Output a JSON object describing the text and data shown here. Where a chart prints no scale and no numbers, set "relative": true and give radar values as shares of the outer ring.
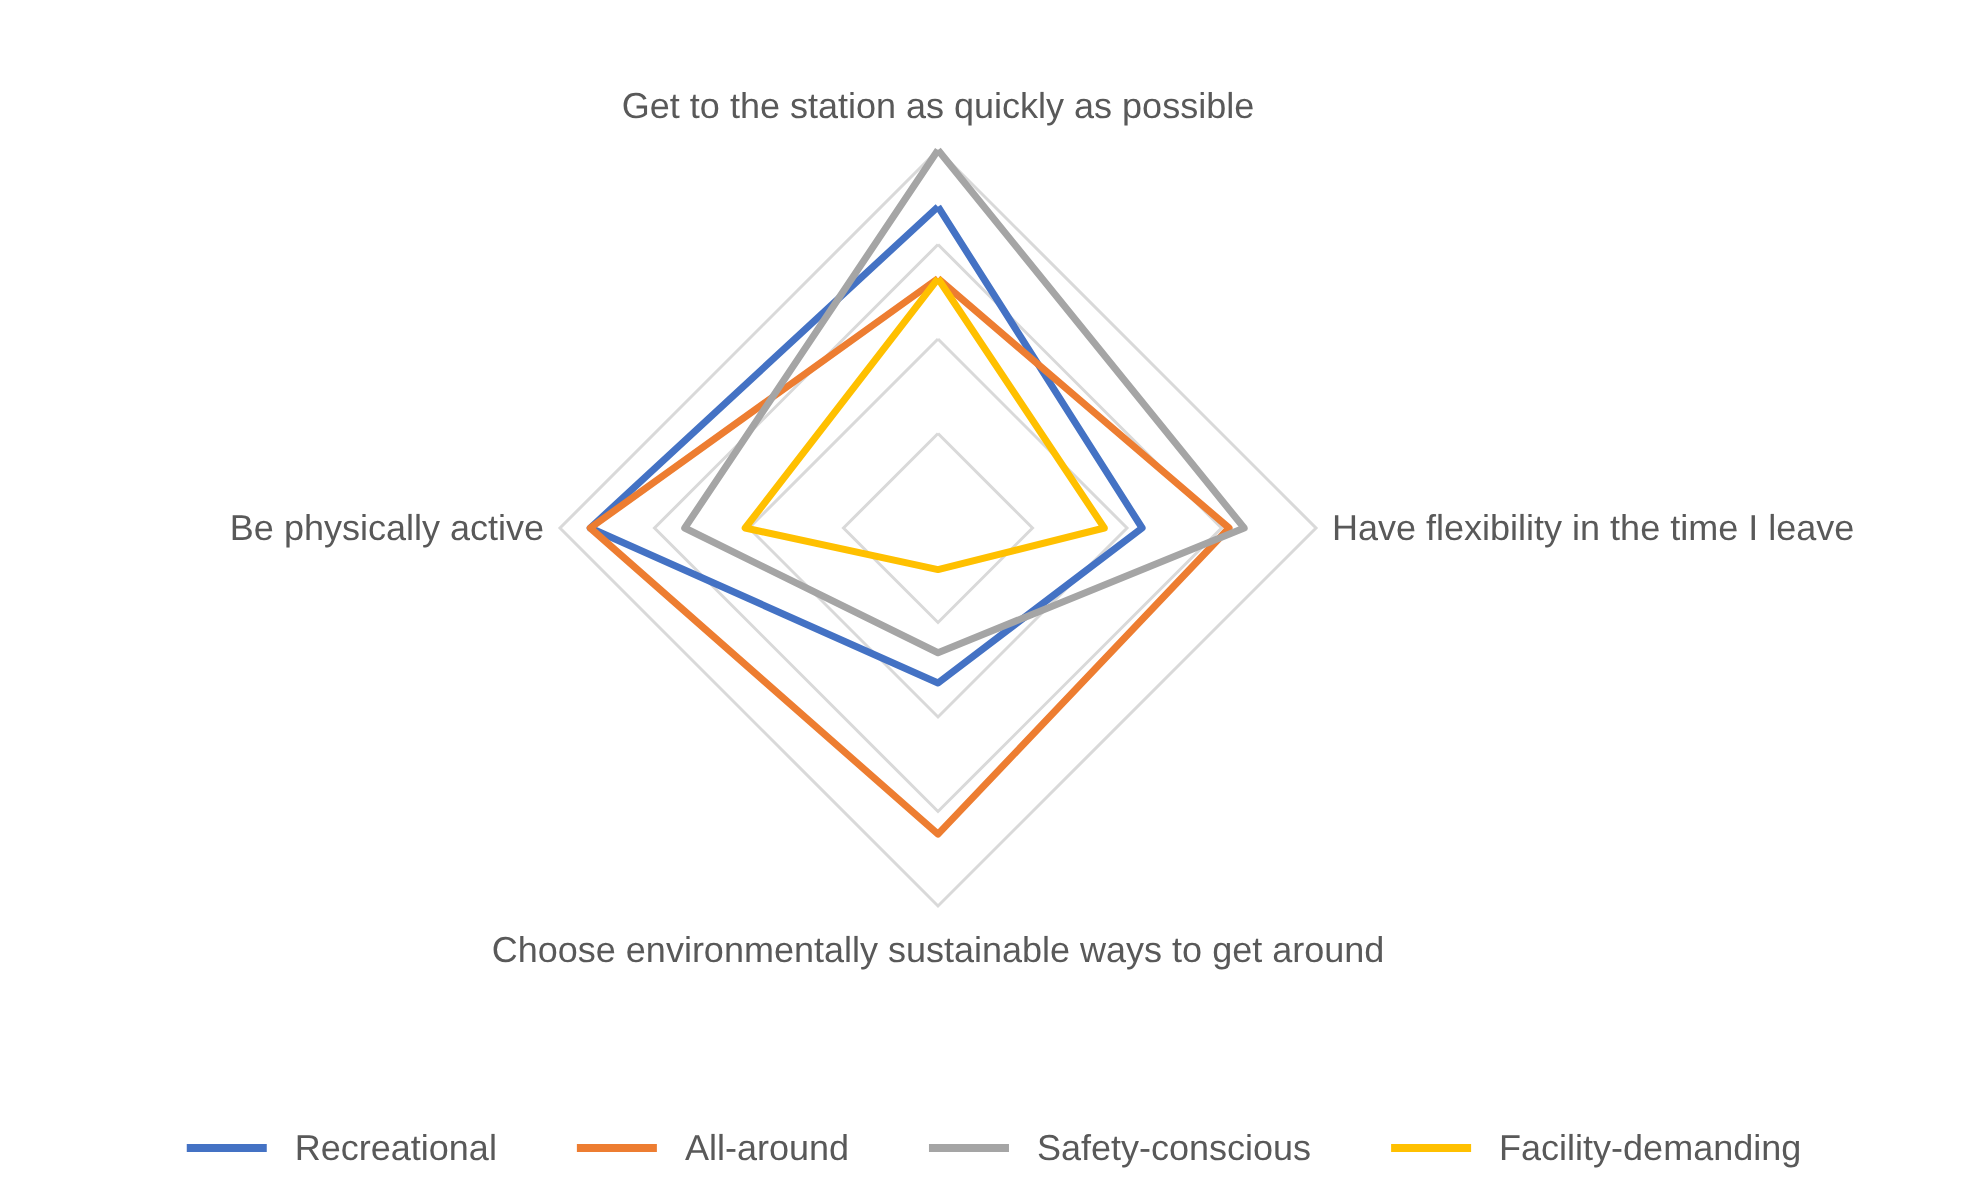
{
  "chart_data": {
    "type": "radar",
    "relative": true,
    "categories": [
      "Get to the station as quickly as possible",
      "Have flexibility in the time I leave",
      "Choose environmentally sustainable ways to get around",
      "Be physically active"
    ],
    "series": [
      {
        "name": "Recreational",
        "color": "#4472c4",
        "values": [
          0.85,
          0.54,
          0.41,
          0.92
        ]
      },
      {
        "name": "All-around",
        "color": "#ed7d31",
        "values": [
          0.66,
          0.77,
          0.81,
          0.92
        ]
      },
      {
        "name": "Safety-conscious",
        "color": "#a5a5a5",
        "values": [
          1.0,
          0.81,
          0.33,
          0.67
        ]
      },
      {
        "name": "Facility-demanding",
        "color": "#ffc000",
        "values": [
          0.66,
          0.44,
          0.11,
          0.51
        ]
      }
    ],
    "legend": "bottom",
    "marker": "none",
    "line_style": "solid",
    "grid": true
  }
}
